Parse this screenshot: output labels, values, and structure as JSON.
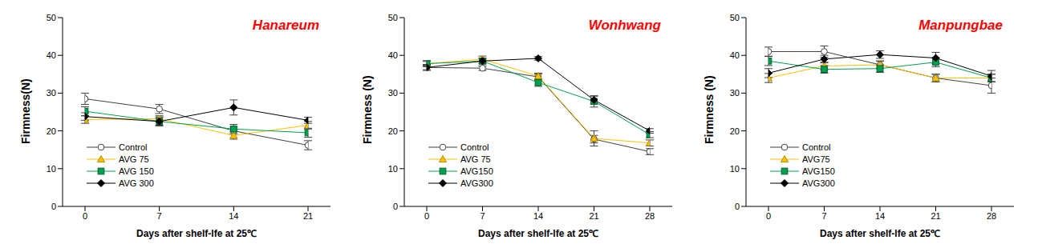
{
  "chart_data": [
    {
      "type": "line",
      "title": "Hanareum",
      "x_label": "Days after shelf-lfe at 25℃",
      "y_label": "Firmness(N)",
      "x": [
        0,
        7,
        14,
        21
      ],
      "xlim": [
        0,
        21
      ],
      "xticks": [
        0,
        7,
        14,
        21
      ],
      "ylim": [
        0,
        50
      ],
      "yticks": [
        0,
        10,
        20,
        30,
        40,
        50
      ],
      "grid": false,
      "legend": "lower left",
      "series": [
        {
          "name": "Control",
          "color": "#404040",
          "marker": "hollow_circle",
          "values": [
            28.5,
            25.8,
            20.0,
            16.2
          ],
          "errors": [
            1.5,
            1.2,
            1.0,
            1.2
          ]
        },
        {
          "name": "AVG 75",
          "color": "#FFC000",
          "marker": "triangle",
          "values": [
            23.0,
            23.2,
            18.8,
            21.5
          ],
          "errors": [
            1.0,
            0.8,
            1.0,
            1.0
          ]
        },
        {
          "name": "AVG 150",
          "color": "#00A050",
          "marker": "square",
          "values": [
            25.2,
            22.5,
            20.5,
            19.5
          ],
          "errors": [
            1.2,
            1.0,
            1.2,
            1.2
          ]
        },
        {
          "name": "AVG 300",
          "color": "#000000",
          "marker": "diamond",
          "values": [
            23.8,
            22.5,
            26.2,
            22.8
          ],
          "errors": [
            1.0,
            1.2,
            2.0,
            0.8
          ]
        }
      ]
    },
    {
      "type": "line",
      "title": "Wonhwang",
      "x_label": "Days after shelf-lfe at 25℃",
      "y_label": "Firmness (N)",
      "x": [
        0,
        7,
        14,
        21,
        28
      ],
      "xlim": [
        0,
        28
      ],
      "xticks": [
        0,
        7,
        14,
        21,
        28
      ],
      "ylim": [
        0,
        50
      ],
      "yticks": [
        0,
        10,
        20,
        30,
        40,
        50
      ],
      "grid": false,
      "legend": "lower left",
      "series": [
        {
          "name": "Control",
          "color": "#404040",
          "marker": "hollow_circle",
          "values": [
            36.8,
            36.6,
            34.3,
            17.8,
            14.5
          ],
          "errors": [
            0.8,
            0.6,
            0.8,
            1.0,
            0.8
          ]
        },
        {
          "name": "AVG 75",
          "color": "#FFC000",
          "marker": "triangle",
          "values": [
            37.8,
            39.0,
            34.5,
            18.0,
            16.8
          ],
          "errors": [
            0.6,
            0.8,
            0.8,
            2.0,
            0.8
          ]
        },
        {
          "name": "AVG150",
          "color": "#00A050",
          "marker": "square",
          "values": [
            37.8,
            38.5,
            32.8,
            27.8,
            19.0
          ],
          "errors": [
            0.8,
            0.8,
            1.0,
            1.5,
            0.8
          ]
        },
        {
          "name": "AVG300",
          "color": "#000000",
          "marker": "diamond",
          "values": [
            36.8,
            38.5,
            39.2,
            28.2,
            20.0
          ],
          "errors": [
            0.6,
            0.6,
            0.5,
            1.0,
            0.6
          ]
        }
      ]
    },
    {
      "type": "line",
      "title": "Manpungbae",
      "x_label": "Days after shelf-lfe at 25℃",
      "y_label": "Firmness (N)",
      "x": [
        0,
        7,
        14,
        21,
        28
      ],
      "xlim": [
        0,
        28
      ],
      "xticks": [
        0,
        7,
        14,
        21,
        28
      ],
      "ylim": [
        0,
        50
      ],
      "yticks": [
        0,
        10,
        20,
        30,
        40,
        50
      ],
      "grid": false,
      "legend": "lower left",
      "series": [
        {
          "name": "Control",
          "color": "#404040",
          "marker": "hollow_circle",
          "values": [
            41.0,
            41.0,
            37.5,
            34.0,
            32.0
          ],
          "errors": [
            1.2,
            1.5,
            1.0,
            1.0,
            2.0
          ]
        },
        {
          "name": "AVG75",
          "color": "#FFC000",
          "marker": "triangle",
          "values": [
            34.0,
            37.2,
            37.5,
            34.0,
            34.0
          ],
          "errors": [
            1.2,
            1.0,
            1.0,
            1.0,
            1.0
          ]
        },
        {
          "name": "AVG150",
          "color": "#00A050",
          "marker": "square",
          "values": [
            38.5,
            36.3,
            36.5,
            38.2,
            34.0
          ],
          "errors": [
            1.2,
            1.0,
            1.0,
            1.2,
            1.0
          ]
        },
        {
          "name": "AVG300",
          "color": "#000000",
          "marker": "diamond",
          "values": [
            35.3,
            39.0,
            40.2,
            39.3,
            34.5
          ],
          "errors": [
            1.2,
            1.0,
            1.0,
            1.5,
            1.5
          ]
        }
      ]
    }
  ]
}
